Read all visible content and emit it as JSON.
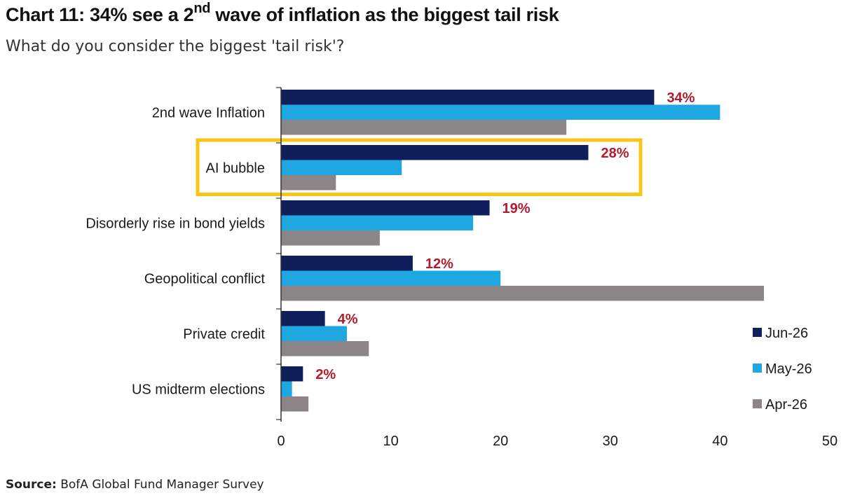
{
  "title": {
    "prefix": "Chart 11: 34% see a 2",
    "superscript": "nd",
    "suffix": " wave of inflation as the biggest tail risk"
  },
  "subtitle": "What do you consider the biggest 'tail risk'?",
  "source": {
    "label": "Source:",
    "text": "BofA Global Fund Manager Survey"
  },
  "colors": {
    "jun": "#0f1f5c",
    "may": "#1ea7e1",
    "apr": "#8c8587",
    "label_red": "#b01c2e",
    "highlight": "#f7c417"
  },
  "chart_data": {
    "type": "bar",
    "orientation": "horizontal",
    "categories": [
      "2nd wave Inflation",
      "AI bubble",
      "Disorderly rise in bond yields",
      "Geopolitical conflict",
      "Private credit",
      "US midterm elections"
    ],
    "series": [
      {
        "name": "Jun-26",
        "color": "#0f1f5c",
        "values": [
          34,
          28,
          19,
          12,
          4,
          2
        ]
      },
      {
        "name": "May-26",
        "color": "#1ea7e1",
        "values": [
          40,
          11,
          17.5,
          20,
          6,
          1
        ]
      },
      {
        "name": "Apr-26",
        "color": "#8c8587",
        "values": [
          26,
          5,
          9,
          44,
          8,
          2.5
        ]
      }
    ],
    "data_labels": [
      "34%",
      "28%",
      "19%",
      "12%",
      "4%",
      "2%"
    ],
    "highlighted_category": "AI bubble",
    "xlim": [
      0,
      50
    ],
    "xticks": [
      "0",
      "10",
      "20",
      "30",
      "40",
      "50"
    ],
    "legend_position": "bottom-right",
    "grid": false
  }
}
